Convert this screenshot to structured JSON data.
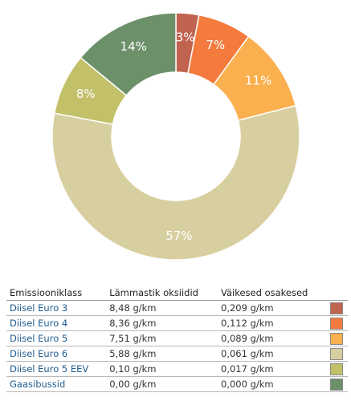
{
  "chart_data": {
    "type": "pie",
    "donut": true,
    "categories": [
      "Diisel Euro 3",
      "Diisel Euro 4",
      "Diisel Euro 5",
      "Diisel Euro 6",
      "Diisel Euro 5 EEV",
      "Gaasibussid"
    ],
    "values": [
      3,
      7,
      11,
      57,
      8,
      14
    ],
    "value_labels": [
      "3%",
      "7%",
      "11%",
      "57%",
      "8%",
      "14%"
    ],
    "colors": [
      "#c0634f",
      "#f47a3e",
      "#fbb04f",
      "#d8cfa0",
      "#c3c06a",
      "#6c906a"
    ]
  },
  "table": {
    "headers": [
      "Emissiooniklass",
      "Lämmastik oksiidid",
      "Väikesed osakesed"
    ],
    "rows": [
      {
        "name": "Diisel Euro 3",
        "nox": "8,48 g/km",
        "pm": "0,209 g/km",
        "color": "#c0634f"
      },
      {
        "name": "Diisel Euro 4",
        "nox": "8,36 g/km",
        "pm": "0,112 g/km",
        "color": "#f47a3e"
      },
      {
        "name": "Diisel Euro 5",
        "nox": "7,51 g/km",
        "pm": "0,089 g/km",
        "color": "#fbb04f"
      },
      {
        "name": "Diisel Euro 6",
        "nox": "5,88 g/km",
        "pm": "0,061 g/km",
        "color": "#d8cfa0"
      },
      {
        "name": "Diisel Euro 5 EEV",
        "nox": "0,10 g/km",
        "pm": "0,017 g/km",
        "color": "#c3c06a"
      },
      {
        "name": "Gaasibussid",
        "nox": "0,00 g/km",
        "pm": "0,000 g/km",
        "color": "#6c906a"
      }
    ]
  }
}
